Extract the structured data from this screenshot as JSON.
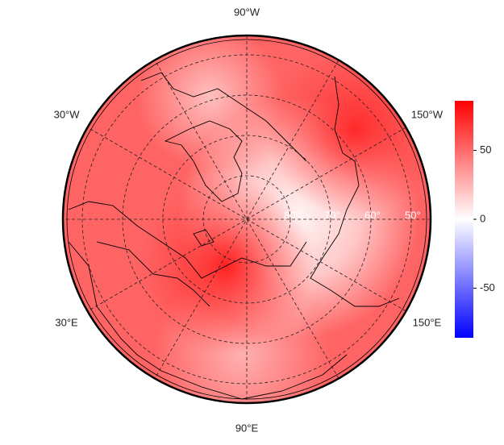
{
  "map": {
    "longitude_labels": [
      "90°W",
      "150°W",
      "150°E",
      "90°E",
      "30°E",
      "30°W"
    ],
    "latitude_labels": [
      "80°",
      "70°",
      "60°",
      "50°"
    ],
    "colorbar": {
      "ylim": [
        -86,
        86
      ],
      "yticks": [
        -50,
        0,
        50
      ],
      "colors": [
        "#0000ff",
        "#ffffff",
        "#ff0000"
      ]
    }
  }
}
